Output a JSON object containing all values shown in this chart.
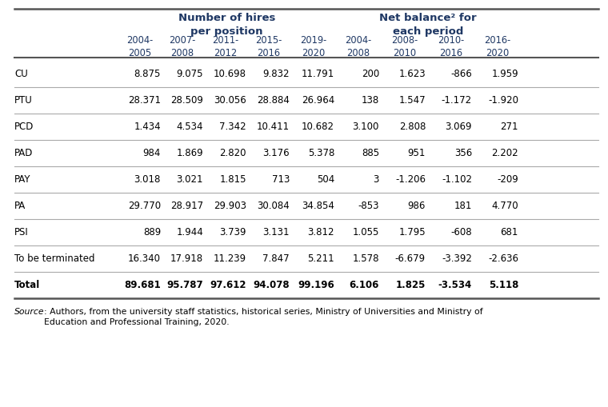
{
  "title_left": "Number of hires\nper position",
  "title_right": "Net balance² for\neach period",
  "col_headers": [
    "2004-\n2005",
    "2007-\n2008",
    "2011-\n2012",
    "2015-\n2016",
    "2019-\n2020",
    "2004-\n2008",
    "2008-\n2010",
    "2010-\n2016",
    "2016-\n2020"
  ],
  "row_labels": [
    "CU",
    "PTU",
    "PCD",
    "PAD",
    "PAY",
    "PA",
    "PSI",
    "To be terminated",
    "Total"
  ],
  "rows": [
    [
      "8.875",
      "9.075",
      "10.698",
      "9.832",
      "11.791",
      "200",
      "1.623",
      "-866",
      "1.959"
    ],
    [
      "28.371",
      "28.509",
      "30.056",
      "28.884",
      "26.964",
      "138",
      "1.547",
      "-1.172",
      "-1.920"
    ],
    [
      "1.434",
      "4.534",
      "7.342",
      "10.411",
      "10.682",
      "3.100",
      "2.808",
      "3.069",
      "271"
    ],
    [
      "984",
      "1.869",
      "2.820",
      "3.176",
      "5.378",
      "885",
      "951",
      "356",
      "2.202"
    ],
    [
      "3.018",
      "3.021",
      "1.815",
      "713",
      "504",
      "3",
      "-1.206",
      "-1.102",
      "-209"
    ],
    [
      "29.770",
      "28.917",
      "29.903",
      "30.084",
      "34.854",
      "-853",
      "986",
      "181",
      "4.770"
    ],
    [
      "889",
      "1.944",
      "3.739",
      "3.131",
      "3.812",
      "1.055",
      "1.795",
      "-608",
      "681"
    ],
    [
      "16.340",
      "17.918",
      "11.239",
      "7.847",
      "5.211",
      "1.578",
      "-6.679",
      "-3.392",
      "-2.636"
    ],
    [
      "89.681",
      "95.787",
      "97.612",
      "94.078",
      "99.196",
      "6.106",
      "1.825",
      "-3.534",
      "5.118"
    ]
  ],
  "bold_rows": [
    8
  ],
  "source_italic": "Source",
  "source_rest": ": Authors, from the university staff statistics, historical series, Ministry of Universities and Ministry of\nEducation and Professional Training, 2020.",
  "background_color": "#ffffff",
  "text_color": "#000000",
  "header_color": "#1f3864",
  "dark_line_color": "#555555",
  "light_line_color": "#aaaaaa"
}
